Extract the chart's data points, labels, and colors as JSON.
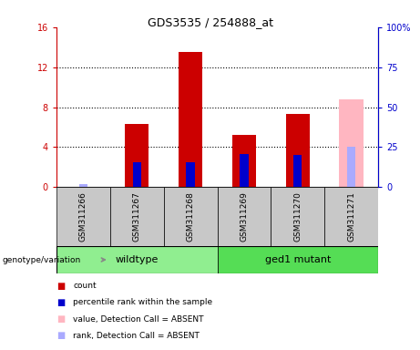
{
  "title": "GDS3535 / 254888_at",
  "samples": [
    "GSM311266",
    "GSM311267",
    "GSM311268",
    "GSM311269",
    "GSM311270",
    "GSM311271"
  ],
  "count_values": [
    0.0,
    6.3,
    13.5,
    5.2,
    7.3,
    0.0
  ],
  "rank_values": [
    0.0,
    2.5,
    2.5,
    3.3,
    3.2,
    0.0
  ],
  "absent_count_values": [
    0.0,
    0.0,
    0.0,
    0.0,
    0.0,
    8.8
  ],
  "absent_rank_values": [
    0.3,
    0.0,
    0.0,
    0.0,
    0.0,
    4.0
  ],
  "ylim_left": [
    0,
    16
  ],
  "ylim_right": [
    0,
    100
  ],
  "yticks_left": [
    0,
    4,
    8,
    12,
    16
  ],
  "ytick_labels_left": [
    "0",
    "4",
    "8",
    "12",
    "16"
  ],
  "yticks_right": [
    0,
    25,
    50,
    75,
    100
  ],
  "ytick_labels_right": [
    "0",
    "25",
    "50",
    "75",
    "100%"
  ],
  "groups": [
    {
      "label": "wildtype",
      "indices": [
        0,
        1,
        2
      ],
      "color": "#90EE90"
    },
    {
      "label": "ged1 mutant",
      "indices": [
        3,
        4,
        5
      ],
      "color": "#55DD55"
    }
  ],
  "bar_color_red": "#CC0000",
  "bar_color_pink": "#FFB6C1",
  "dot_color_blue": "#0000CC",
  "dot_color_lightblue": "#AAAAFF",
  "bar_width": 0.45,
  "sample_box_color": "#C8C8C8",
  "left_axis_color": "#CC0000",
  "right_axis_color": "#0000CC",
  "genotype_label": "genotype/variation",
  "legend_items": [
    {
      "label": "count",
      "color": "#CC0000"
    },
    {
      "label": "percentile rank within the sample",
      "color": "#0000CC"
    },
    {
      "label": "value, Detection Call = ABSENT",
      "color": "#FFB6C1"
    },
    {
      "label": "rank, Detection Call = ABSENT",
      "color": "#AAAAFF"
    }
  ]
}
